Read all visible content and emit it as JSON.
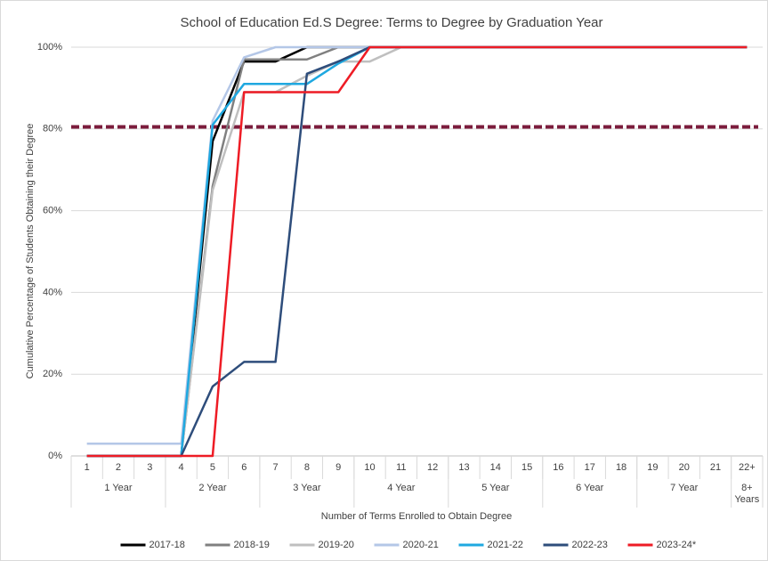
{
  "chart_data": {
    "type": "line",
    "title": "School of Education Ed.S Degree: Terms to Degree by Graduation Year",
    "x_label": "Number of Terms Enrolled to Obtain Degree",
    "y_label": "Cumulative Percentage of Students Obtaining their Degree",
    "categories": [
      "1",
      "2",
      "3",
      "4",
      "5",
      "6",
      "7",
      "8",
      "9",
      "10",
      "11",
      "12",
      "13",
      "14",
      "15",
      "16",
      "17",
      "18",
      "19",
      "20",
      "21",
      "22+"
    ],
    "groups": [
      "1 Year",
      "2 Year",
      "3 Year",
      "4 Year",
      "5 Year",
      "6 Year",
      "7 Year",
      "8+ Years"
    ],
    "ylim": [
      0,
      100
    ],
    "yticks": [
      {
        "value": 0,
        "label": "0%"
      },
      {
        "value": 20,
        "label": "20%"
      },
      {
        "value": 40,
        "label": "40%"
      },
      {
        "value": 60,
        "label": "60%"
      },
      {
        "value": 80,
        "label": "80%"
      },
      {
        "value": 100,
        "label": "100%"
      }
    ],
    "grid": true,
    "legend": "bottom",
    "reference_line": {
      "value": 80.5,
      "color": "#7b1c3c",
      "style": "dashed"
    },
    "series": [
      {
        "name": "2017-18",
        "color": "#000000",
        "values": [
          0,
          0,
          0,
          0,
          77,
          96.5,
          96.5,
          100,
          100,
          100,
          100,
          100,
          100,
          100,
          100,
          100,
          100,
          100,
          100,
          100,
          100,
          100
        ]
      },
      {
        "name": "2018-19",
        "color": "#808080",
        "values": [
          0,
          0,
          0,
          0,
          66,
          97,
          97,
          97,
          100,
          100,
          100,
          100,
          100,
          100,
          100,
          100,
          100,
          100,
          100,
          100,
          100,
          100
        ]
      },
      {
        "name": "2019-20",
        "color": "#bfbfbf",
        "values": [
          0,
          0,
          0,
          0,
          65,
          89,
          89,
          93,
          96.5,
          96.5,
          100,
          100,
          100,
          100,
          100,
          100,
          100,
          100,
          100,
          100,
          100,
          100
        ]
      },
      {
        "name": "2020-21",
        "color": "#b4c7e7",
        "values": [
          3,
          3,
          3,
          3,
          82,
          97.5,
          100,
          100,
          100,
          100,
          100,
          100,
          100,
          100,
          100,
          100,
          100,
          100,
          100,
          100,
          100,
          100
        ]
      },
      {
        "name": "2021-22",
        "color": "#1fa8e0",
        "values": [
          0,
          0,
          0,
          0,
          81,
          91,
          91,
          91,
          96,
          100,
          100,
          100,
          100,
          100,
          100,
          100,
          100,
          100,
          100,
          100,
          100,
          100
        ]
      },
      {
        "name": "2022-23",
        "color": "#2e4d7b",
        "values": [
          0,
          0,
          0,
          0,
          17,
          23,
          23,
          93.5,
          96.5,
          100,
          100,
          100,
          100,
          100,
          100,
          100,
          100,
          100,
          100,
          100,
          100,
          100
        ]
      },
      {
        "name": "2023-24*",
        "color": "#ee1c25",
        "values": [
          0,
          0,
          0,
          0,
          0,
          89,
          89,
          89,
          89,
          100,
          100,
          100,
          100,
          100,
          100,
          100,
          100,
          100,
          100,
          100,
          100,
          100
        ]
      }
    ]
  }
}
